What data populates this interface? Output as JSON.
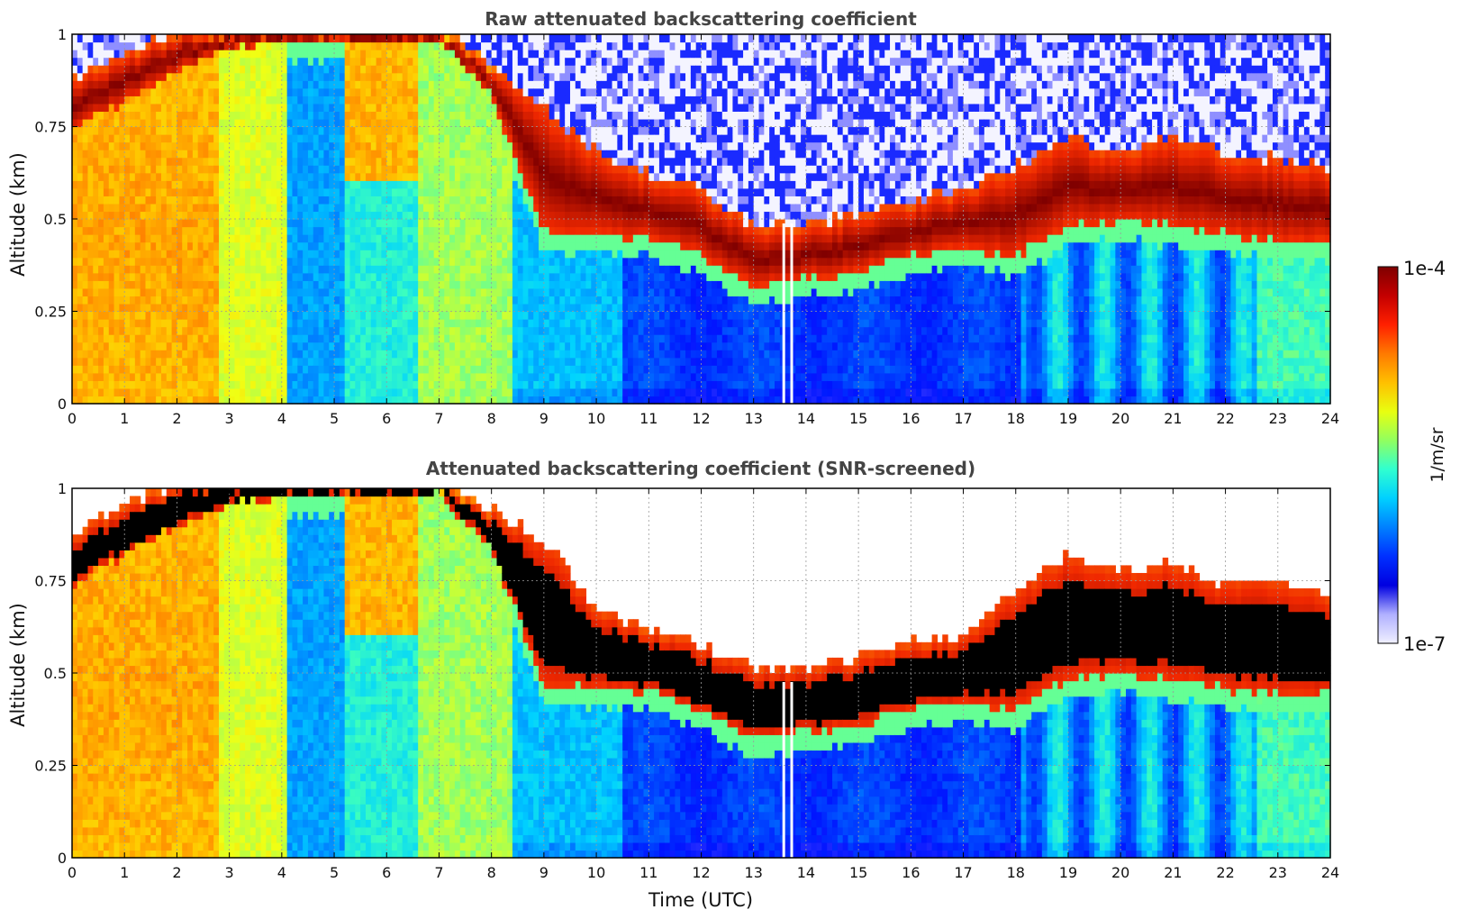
{
  "chart_data": [
    {
      "type": "heatmap",
      "title": "Raw attenuated backscattering coefficient",
      "xlabel": "",
      "ylabel": "Altitude (km)",
      "xlim": [
        0,
        24
      ],
      "ylim": [
        0,
        1
      ],
      "x_ticks": [
        "0",
        "1",
        "2",
        "3",
        "4",
        "5",
        "6",
        "7",
        "8",
        "9",
        "10",
        "11",
        "12",
        "13",
        "14",
        "15",
        "16",
        "17",
        "18",
        "19",
        "20",
        "21",
        "22",
        "23",
        "24"
      ],
      "y_ticks": [
        "0",
        "0.25",
        "0.5",
        "0.75",
        "1"
      ],
      "grid": true,
      "color_scale": "log",
      "color_range": [
        1e-07,
        0.0001
      ],
      "features": {
        "cloud_layer_top_km": {
          "x": [
            0,
            1,
            2,
            3,
            4,
            5,
            6,
            7,
            8,
            9,
            10,
            11,
            12,
            13,
            14,
            15,
            16,
            17,
            18,
            19,
            20,
            21,
            22,
            23,
            24
          ],
          "y": [
            0.86,
            0.93,
            0.99,
            1.0,
            1.0,
            1.0,
            1.0,
            1.0,
            0.9,
            0.78,
            0.66,
            0.6,
            0.56,
            0.46,
            0.46,
            0.5,
            0.53,
            0.56,
            0.62,
            0.7,
            0.66,
            0.7,
            0.66,
            0.64,
            0.62
          ]
        },
        "cloud_layer_base_km": {
          "x": [
            0,
            1,
            2,
            3,
            4,
            5,
            6,
            7,
            8,
            9,
            10,
            11,
            12,
            13,
            14,
            15,
            16,
            17,
            18,
            19,
            20,
            21,
            22,
            23,
            24
          ],
          "y": [
            0.74,
            0.82,
            0.9,
            0.96,
            0.98,
            0.98,
            0.98,
            0.98,
            0.84,
            0.46,
            0.46,
            0.45,
            0.4,
            0.32,
            0.34,
            0.36,
            0.4,
            0.42,
            0.4,
            0.48,
            0.5,
            0.48,
            0.46,
            0.44,
            0.44
          ]
        }
      }
    },
    {
      "type": "heatmap",
      "title": "Attenuated backscattering coefficient (SNR-screened)",
      "xlabel": "Time (UTC)",
      "ylabel": "Altitude (km)",
      "xlim": [
        0,
        24
      ],
      "ylim": [
        0,
        1
      ],
      "x_ticks": [
        "0",
        "1",
        "2",
        "3",
        "4",
        "5",
        "6",
        "7",
        "8",
        "9",
        "10",
        "11",
        "12",
        "13",
        "14",
        "15",
        "16",
        "17",
        "18",
        "19",
        "20",
        "21",
        "22",
        "23",
        "24"
      ],
      "y_ticks": [
        "0",
        "0.25",
        "0.5",
        "0.75",
        "1"
      ],
      "grid": true,
      "color_scale": "log",
      "color_range": [
        1e-07,
        0.0001
      ],
      "features": {
        "cloud_layer_top_km": {
          "x": [
            0,
            1,
            2,
            3,
            4,
            5,
            6,
            7,
            8,
            9,
            10,
            11,
            12,
            13,
            14,
            15,
            16,
            17,
            18,
            19,
            20,
            21,
            22,
            23,
            24
          ],
          "y": [
            0.86,
            0.93,
            0.99,
            1.0,
            1.0,
            1.0,
            1.0,
            1.0,
            0.92,
            0.84,
            0.66,
            0.6,
            0.56,
            0.5,
            0.5,
            0.52,
            0.56,
            0.58,
            0.7,
            0.8,
            0.76,
            0.78,
            0.72,
            0.74,
            0.68
          ]
        },
        "cloud_layer_base_km": {
          "x": [
            0,
            1,
            2,
            3,
            4,
            5,
            6,
            7,
            8,
            9,
            10,
            11,
            12,
            13,
            14,
            15,
            16,
            17,
            18,
            19,
            20,
            21,
            22,
            23,
            24
          ],
          "y": [
            0.74,
            0.82,
            0.9,
            0.96,
            0.98,
            0.98,
            0.98,
            0.98,
            0.84,
            0.46,
            0.46,
            0.45,
            0.4,
            0.32,
            0.34,
            0.36,
            0.4,
            0.42,
            0.4,
            0.48,
            0.5,
            0.48,
            0.46,
            0.44,
            0.44
          ]
        }
      }
    }
  ],
  "colorbar": {
    "label": "1/m/sr",
    "max_label": "1e-4",
    "min_label": "1e-7",
    "colors": [
      "#7f0000",
      "#c40000",
      "#ff2000",
      "#ff7a00",
      "#ffc000",
      "#e8ff10",
      "#90ff60",
      "#30ffd0",
      "#00d0ff",
      "#0080ff",
      "#0030ff",
      "#0000e0",
      "#b0b0ff",
      "#f0f0ff"
    ]
  },
  "colors": {
    "low": "#0020ff",
    "cloud": "#8b0000",
    "saturated_screened": "#000000",
    "aerosol": "#ff9a00"
  }
}
